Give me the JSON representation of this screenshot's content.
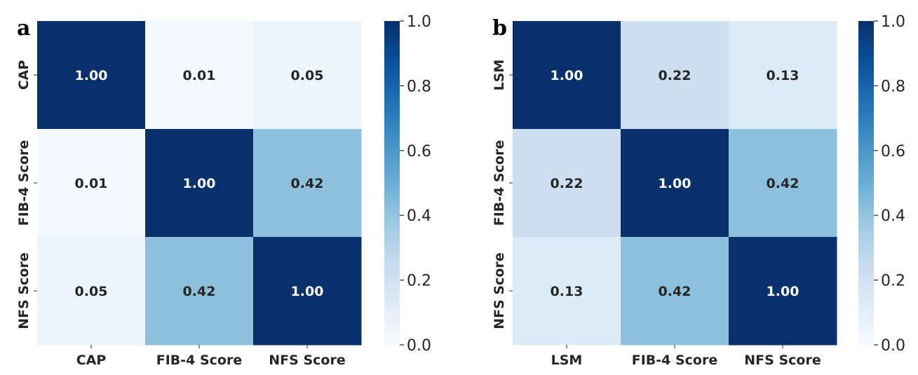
{
  "chart_data": [
    {
      "type": "heatmap",
      "panel_label": "a",
      "rows": [
        "CAP",
        "FIB-4 Score",
        "NFS Score"
      ],
      "columns": [
        "CAP",
        "FIB-4 Score",
        "NFS Score"
      ],
      "values": [
        [
          1.0,
          0.01,
          0.05
        ],
        [
          0.01,
          1.0,
          0.42
        ],
        [
          0.05,
          0.42,
          1.0
        ]
      ],
      "value_format": "0.00",
      "colormap": "Blues",
      "colorbar": {
        "range": [
          0.0,
          1.0
        ],
        "ticks": [
          "0.0",
          "0.2",
          "0.4",
          "0.6",
          "0.8",
          "1.0"
        ]
      },
      "title": "",
      "xlabel": "",
      "ylabel": ""
    },
    {
      "type": "heatmap",
      "panel_label": "b",
      "rows": [
        "LSM",
        "FIB-4 Score",
        "NFS Score"
      ],
      "columns": [
        "LSM",
        "FIB-4 Score",
        "NFS Score"
      ],
      "values": [
        [
          1.0,
          0.22,
          0.13
        ],
        [
          0.22,
          1.0,
          0.42
        ],
        [
          0.13,
          0.42,
          1.0
        ]
      ],
      "value_format": "0.00",
      "colormap": "Blues",
      "colorbar": {
        "range": [
          0.0,
          1.0
        ],
        "ticks": [
          "0.0",
          "0.2",
          "0.4",
          "0.6",
          "0.8",
          "1.0"
        ]
      },
      "title": "",
      "xlabel": "",
      "ylabel": ""
    }
  ]
}
